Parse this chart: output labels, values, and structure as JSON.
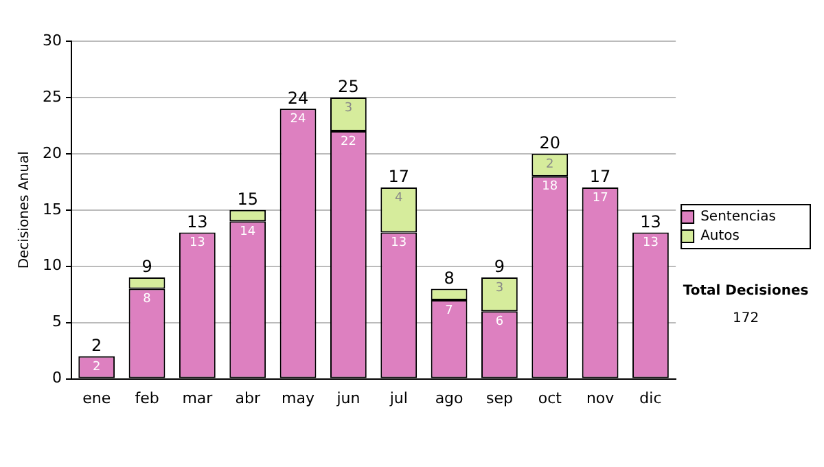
{
  "chart_data": {
    "type": "bar",
    "ylabel": "Decisiones Anual",
    "categories": [
      "ene",
      "feb",
      "mar",
      "abr",
      "may",
      "jun",
      "jul",
      "ago",
      "sep",
      "oct",
      "nov",
      "dic"
    ],
    "series": [
      {
        "name": "Sentencias",
        "color": "#dd80c0",
        "values": [
          2,
          8,
          13,
          14,
          24,
          22,
          13,
          7,
          6,
          18,
          17,
          13
        ],
        "value_labels": [
          "2",
          "8",
          "13",
          "14",
          "24",
          "22",
          "13",
          "7",
          "6",
          "18",
          "17",
          "13"
        ]
      },
      {
        "name": "Autos",
        "color": "#d6ec9c",
        "values": [
          0,
          1,
          0,
          1,
          0,
          3,
          4,
          1,
          3,
          2,
          0,
          0
        ],
        "value_labels": [
          null,
          null,
          null,
          null,
          null,
          "3",
          "4",
          null,
          "3",
          "2",
          null,
          null
        ]
      }
    ],
    "stacked": true,
    "ylim": [
      0,
      30
    ],
    "yticks": [
      0,
      5,
      10,
      15,
      20,
      25,
      30
    ],
    "grid": "y",
    "legend": "right",
    "totals": [
      "2",
      "9",
      "13",
      "15",
      "24",
      "25",
      "17",
      "8",
      "9",
      "20",
      "17",
      "13"
    ],
    "annotations": [
      "Total Decisiones",
      "172"
    ]
  }
}
